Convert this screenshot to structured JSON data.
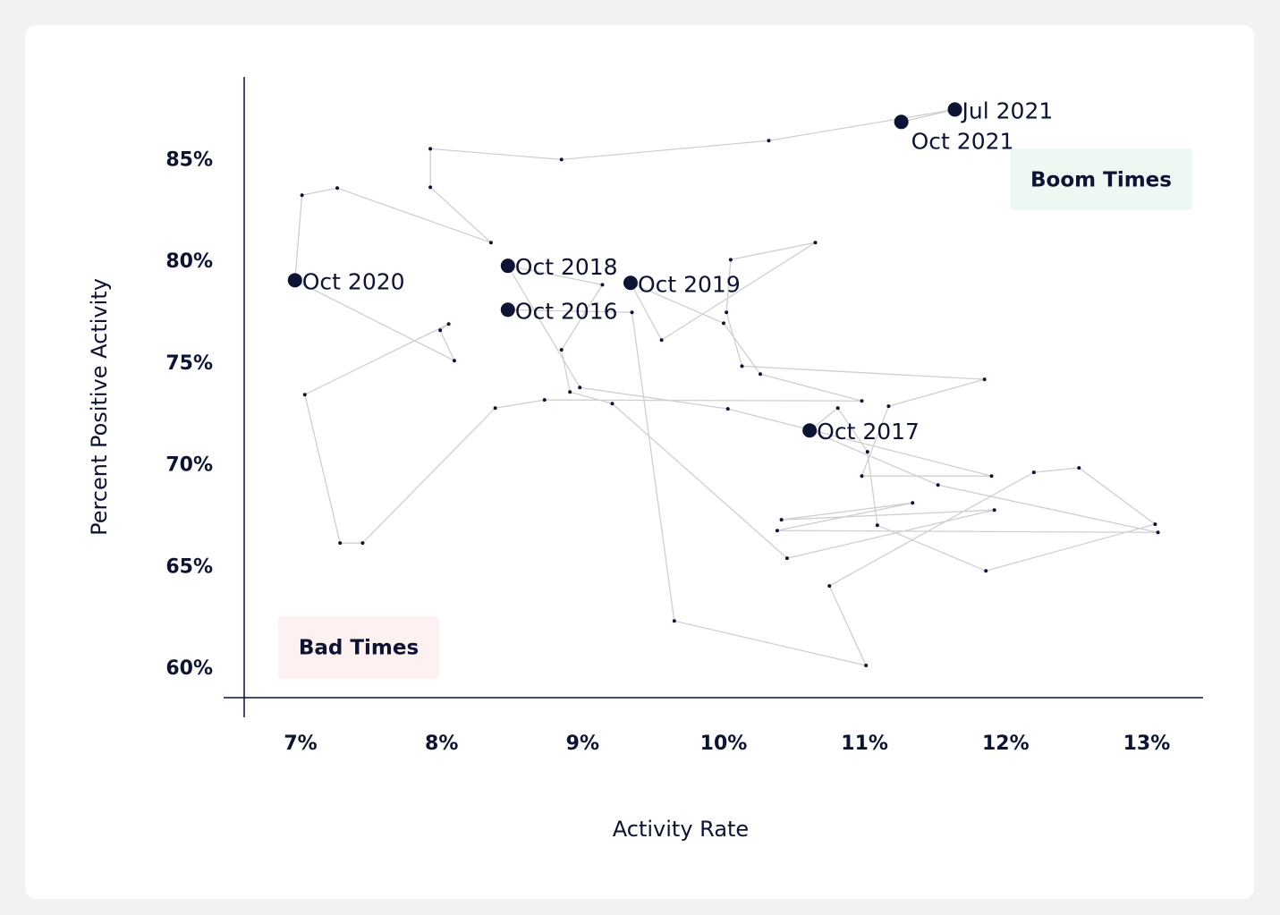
{
  "chart_data": {
    "type": "connected-scatter",
    "x_label": "Activity Rate",
    "y_label": "Percent Positive Activity",
    "annotations": [
      "Boom Times",
      "Bad Times"
    ],
    "color": "#0d1333",
    "line_color": "#cfcfcf",
    "xlim": [
      6.6,
      13.4
    ],
    "ylim": [
      58.6,
      89.1
    ],
    "xticks": [
      {
        "value": 7,
        "label": "7%"
      },
      {
        "value": 8,
        "label": "8%"
      },
      {
        "value": 9,
        "label": "9%"
      },
      {
        "value": 10,
        "label": "10%"
      },
      {
        "value": 11,
        "label": "11%"
      },
      {
        "value": 12,
        "label": "12%"
      },
      {
        "value": 13,
        "label": "13%"
      }
    ],
    "yticks": [
      {
        "value": 60,
        "label": "60%"
      },
      {
        "value": 65,
        "label": "65%"
      },
      {
        "value": 70,
        "label": "70%"
      },
      {
        "value": 75,
        "label": "75%"
      },
      {
        "value": 80,
        "label": "80%"
      },
      {
        "value": 85,
        "label": "85%"
      }
    ],
    "x": [
      8.47,
      9.35,
      9.65,
      11.01,
      10.75,
      12.2,
      12.52,
      13.06,
      11.86,
      11.09,
      11.02,
      10.81,
      10.61,
      11.52,
      13.08,
      10.38,
      11.34,
      10.41,
      11.92,
      10.45,
      9.21,
      8.91,
      8.85,
      9.14,
      8.47,
      8.98,
      10.03,
      11.9,
      10.98,
      11.17,
      11.85,
      10.13,
      10.02,
      10.05,
      10.65,
      9.56,
      9.34,
      10.0,
      10.26,
      10.98,
      8.73,
      8.38,
      7.44,
      7.28,
      7.03,
      8.05,
      7.99,
      8.09,
      6.96,
      7.01,
      7.26,
      8.35,
      7.92,
      7.92,
      8.85,
      10.32,
      11.64,
      11.26
    ],
    "y": [
      77.66,
      77.53,
      62.37,
      60.18,
      64.09,
      69.67,
      69.89,
      67.12,
      64.83,
      67.07,
      70.68,
      72.83,
      71.73,
      69.05,
      66.72,
      66.81,
      68.17,
      67.34,
      67.82,
      65.45,
      73.05,
      73.62,
      75.69,
      78.89,
      79.82,
      73.84,
      72.79,
      69.49,
      69.49,
      72.92,
      74.24,
      74.89,
      77.53,
      80.12,
      80.96,
      76.17,
      78.98,
      77.0,
      74.5,
      73.18,
      73.23,
      72.83,
      66.2,
      66.2,
      73.49,
      76.96,
      76.65,
      75.16,
      79.11,
      83.29,
      83.64,
      80.96,
      83.68,
      85.57,
      85.04,
      85.97,
      87.5,
      86.89
    ],
    "point_labels": [
      "Oct 2016",
      null,
      null,
      null,
      null,
      null,
      null,
      null,
      null,
      null,
      null,
      null,
      "Oct 2017",
      null,
      null,
      null,
      null,
      null,
      null,
      null,
      null,
      null,
      null,
      null,
      "Oct 2018",
      null,
      null,
      null,
      null,
      null,
      null,
      null,
      null,
      null,
      null,
      null,
      "Oct 2019",
      null,
      null,
      null,
      null,
      null,
      null,
      null,
      null,
      null,
      null,
      null,
      "Oct 2020",
      null,
      null,
      null,
      null,
      null,
      null,
      null,
      "Jul 2021",
      "Oct 2021"
    ]
  }
}
